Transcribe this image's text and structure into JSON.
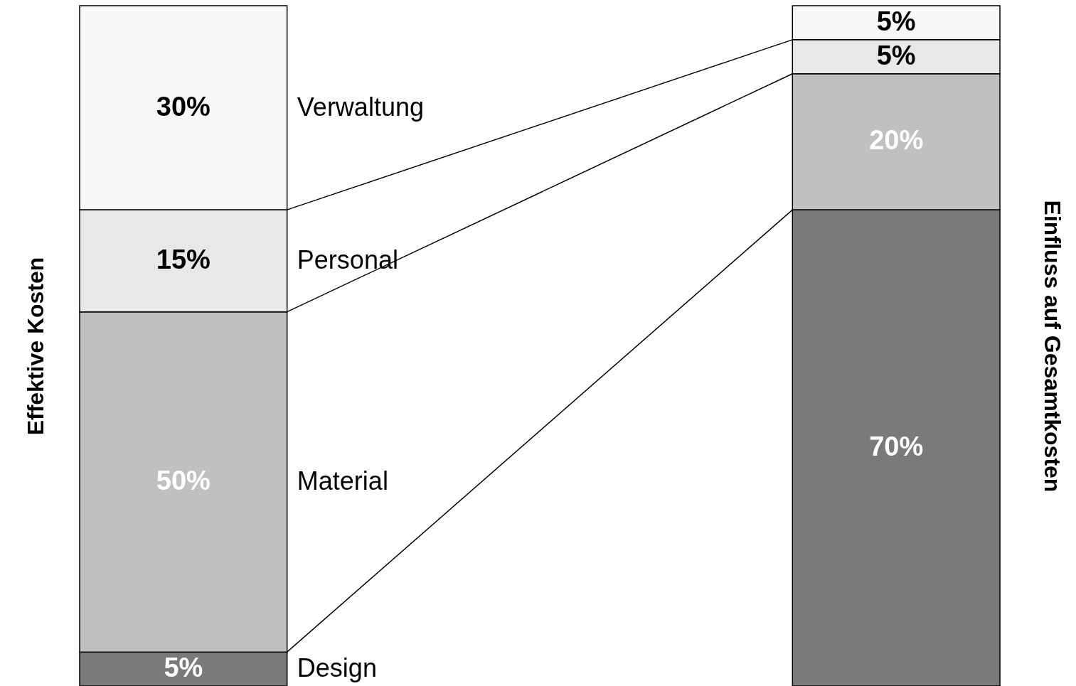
{
  "chart_data": {
    "type": "bar",
    "stacked": true,
    "tick_labels": false,
    "grid": false,
    "ylabel": "Effektive Kosten",
    "y2label": "Einfluss auf Gesamtkosten",
    "categories": [
      null,
      null
    ],
    "series": [
      {
        "name": "Design",
        "color": "#7a7a7a",
        "values": [
          5,
          70
        ],
        "value_labels": [
          "5%",
          "70%"
        ]
      },
      {
        "name": "Material",
        "color": "#c0c0c0",
        "values": [
          50,
          20
        ],
        "value_labels": [
          "50%",
          "20%"
        ]
      },
      {
        "name": "Personal",
        "color": "#e8e8e8",
        "values": [
          15,
          5
        ],
        "value_labels": [
          "15%",
          "5%"
        ]
      },
      {
        "name": "Verwaltung",
        "color": "#f7f7f7",
        "values": [
          30,
          5
        ],
        "value_labels": [
          "30%",
          "5%"
        ]
      }
    ]
  }
}
